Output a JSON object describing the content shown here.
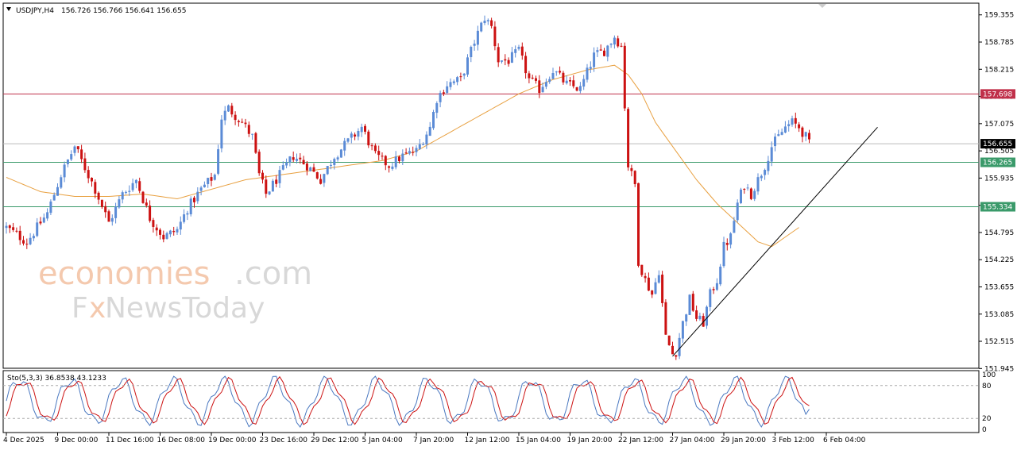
{
  "header": {
    "symbol": "USDJPY,H4",
    "ohlc": "156.726 156.766 156.641 156.655"
  },
  "watermark": {
    "line1": "economies",
    "line1_suffix": ".com",
    "line2_a": "F",
    "line2_x": "x",
    "line2_b": "NewsToday"
  },
  "oscillator": {
    "label": "Sto(5,3,3) 36.8538 43.1233",
    "levels": [
      "100",
      "80",
      "20",
      "0"
    ]
  },
  "colors": {
    "bull": "#5b8bd6",
    "bear": "#cc1111",
    "ma": "#e8a040",
    "resistance": "#c0304a",
    "support": "#3a9a6a",
    "current": "#888888",
    "stoch_main": "#4a78c0",
    "stoch_signal": "#cc1111"
  },
  "chart_data": {
    "type": "candlestick",
    "symbol": "USDJPY",
    "timeframe": "H4",
    "ylim": [
      151.95,
      159.6
    ],
    "y_ticks": [
      "159.355",
      "158.785",
      "158.215",
      "157.645",
      "157.075",
      "156.505",
      "155.935",
      "155.365",
      "154.795",
      "154.225",
      "153.655",
      "153.085",
      "152.515",
      "151.945"
    ],
    "x_ticks": [
      "4 Dec 2025",
      "9 Dec 00:00",
      "11 Dec 16:00",
      "16 Dec 08:00",
      "19 Dec 00:00",
      "23 Dec 16:00",
      "29 Dec 12:00",
      "5 Jan 04:00",
      "7 Jan 20:00",
      "12 Jan 12:00",
      "15 Jan 04:00",
      "19 Jan 20:00",
      "22 Jan 12:00",
      "27 Jan 04:00",
      "29 Jan 20:00",
      "3 Feb 12:00",
      "6 Feb 04:00"
    ],
    "levels": [
      {
        "value": 157.698,
        "label": "157.698",
        "kind": "resistance"
      },
      {
        "value": 156.655,
        "label": "156.655",
        "kind": "current"
      },
      {
        "value": 156.265,
        "label": "156.265",
        "kind": "support"
      },
      {
        "value": 155.334,
        "label": "155.334",
        "kind": "support"
      }
    ],
    "path_anchors": [
      [
        0,
        154.9
      ],
      [
        6,
        154.6
      ],
      [
        12,
        155.2
      ],
      [
        16,
        156.0
      ],
      [
        20,
        156.6
      ],
      [
        22,
        156.3
      ],
      [
        26,
        155.7
      ],
      [
        30,
        155.0
      ],
      [
        34,
        155.6
      ],
      [
        38,
        155.9
      ],
      [
        42,
        155.1
      ],
      [
        46,
        154.7
      ],
      [
        50,
        154.85
      ],
      [
        53,
        155.3
      ],
      [
        57,
        155.7
      ],
      [
        61,
        156.0
      ],
      [
        63,
        157.2
      ],
      [
        65,
        157.4
      ],
      [
        69,
        157.1
      ],
      [
        72,
        156.8
      ],
      [
        74,
        156.0
      ],
      [
        76,
        155.6
      ],
      [
        80,
        156.0
      ],
      [
        84,
        156.4
      ],
      [
        88,
        156.2
      ],
      [
        92,
        155.9
      ],
      [
        96,
        156.4
      ],
      [
        100,
        156.7
      ],
      [
        104,
        157.0
      ],
      [
        108,
        156.4
      ],
      [
        112,
        156.2
      ],
      [
        116,
        156.4
      ],
      [
        120,
        156.5
      ],
      [
        124,
        157.0
      ],
      [
        126,
        157.6
      ],
      [
        129,
        157.9
      ],
      [
        133,
        158.0
      ],
      [
        137,
        158.8
      ],
      [
        140,
        159.3
      ],
      [
        142,
        159.1
      ],
      [
        144,
        158.4
      ],
      [
        147,
        158.4
      ],
      [
        150,
        158.6
      ],
      [
        153,
        158.0
      ],
      [
        156,
        157.8
      ],
      [
        160,
        158.2
      ],
      [
        164,
        157.9
      ],
      [
        168,
        157.8
      ],
      [
        172,
        158.5
      ],
      [
        175,
        158.6
      ],
      [
        178,
        158.9
      ],
      [
        180,
        158.7
      ],
      [
        182,
        156.2
      ],
      [
        184,
        155.8
      ],
      [
        185,
        154.2
      ],
      [
        187,
        153.8
      ],
      [
        189,
        153.5
      ],
      [
        191,
        154.0
      ],
      [
        193,
        152.6
      ],
      [
        195,
        152.25
      ],
      [
        196,
        152.3
      ],
      [
        198,
        152.9
      ],
      [
        200,
        153.4
      ],
      [
        202,
        153.0
      ],
      [
        204,
        152.9
      ],
      [
        206,
        153.5
      ],
      [
        208,
        153.8
      ],
      [
        210,
        154.5
      ],
      [
        212,
        154.7
      ],
      [
        214,
        155.4
      ],
      [
        216,
        155.8
      ],
      [
        218,
        155.6
      ],
      [
        220,
        155.9
      ],
      [
        222,
        156.2
      ],
      [
        224,
        156.6
      ],
      [
        226,
        156.8
      ],
      [
        228,
        157.0
      ],
      [
        230,
        157.1
      ],
      [
        232,
        157.0
      ],
      [
        234,
        156.8
      ],
      [
        235,
        156.65
      ]
    ],
    "ma_anchors": [
      [
        0,
        155.95
      ],
      [
        10,
        155.65
      ],
      [
        20,
        155.55
      ],
      [
        30,
        155.55
      ],
      [
        40,
        155.6
      ],
      [
        50,
        155.5
      ],
      [
        60,
        155.7
      ],
      [
        70,
        155.9
      ],
      [
        80,
        156.0
      ],
      [
        90,
        156.1
      ],
      [
        100,
        156.2
      ],
      [
        110,
        156.3
      ],
      [
        120,
        156.5
      ],
      [
        130,
        156.9
      ],
      [
        140,
        157.3
      ],
      [
        150,
        157.7
      ],
      [
        160,
        158.0
      ],
      [
        170,
        158.2
      ],
      [
        178,
        158.3
      ],
      [
        182,
        158.1
      ],
      [
        186,
        157.7
      ],
      [
        190,
        157.1
      ],
      [
        196,
        156.5
      ],
      [
        202,
        155.9
      ],
      [
        208,
        155.4
      ],
      [
        214,
        155.0
      ],
      [
        220,
        154.6
      ],
      [
        224,
        154.5
      ],
      [
        228,
        154.7
      ],
      [
        232,
        154.9
      ]
    ],
    "trendline": {
      "from": [
        195,
        152.2
      ],
      "to": [
        255,
        157.0
      ]
    },
    "stochastic": {
      "params": "5,3,3",
      "main": 36.8538,
      "signal": 43.1233,
      "ylim": [
        0,
        100
      ],
      "levels": [
        80,
        20
      ]
    }
  }
}
